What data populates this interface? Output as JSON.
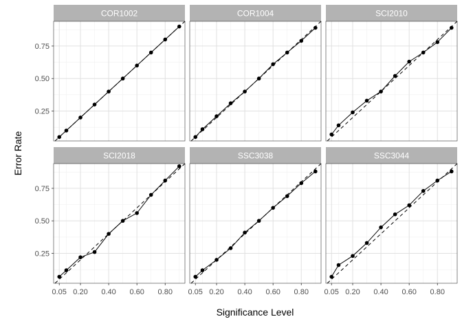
{
  "chart_data": {
    "type": "line",
    "layout": "facet-grid",
    "xlabel": "Significance Level",
    "ylabel": "Error Rate",
    "x_ticks": [
      0.05,
      0.2,
      0.4,
      0.6,
      0.8
    ],
    "x_tick_labels": [
      "0.05",
      "0.20",
      "0.40",
      "0.60",
      "0.80"
    ],
    "y_ticks": [
      0.25,
      0.5,
      0.75
    ],
    "y_tick_labels": [
      "0.25",
      "0.50",
      "0.75"
    ],
    "xlim": [
      0.01,
      0.94
    ],
    "ylim": [
      0.02,
      0.94
    ],
    "reference_line": "y = x (dashed)",
    "grid": true,
    "x": [
      0.05,
      0.1,
      0.2,
      0.3,
      0.4,
      0.5,
      0.6,
      0.7,
      0.8,
      0.9
    ],
    "panels": [
      {
        "name": "COR1002",
        "values": [
          0.05,
          0.1,
          0.2,
          0.3,
          0.4,
          0.5,
          0.6,
          0.7,
          0.8,
          0.9
        ]
      },
      {
        "name": "COR1004",
        "values": [
          0.05,
          0.11,
          0.21,
          0.31,
          0.4,
          0.5,
          0.61,
          0.7,
          0.79,
          0.89
        ]
      },
      {
        "name": "SCI2010",
        "values": [
          0.07,
          0.14,
          0.24,
          0.33,
          0.4,
          0.52,
          0.63,
          0.7,
          0.78,
          0.89
        ]
      },
      {
        "name": "SCI2018",
        "values": [
          0.07,
          0.12,
          0.22,
          0.26,
          0.4,
          0.5,
          0.56,
          0.7,
          0.81,
          0.92
        ]
      },
      {
        "name": "SSC3038",
        "values": [
          0.07,
          0.12,
          0.2,
          0.29,
          0.41,
          0.5,
          0.6,
          0.69,
          0.79,
          0.88
        ]
      },
      {
        "name": "SSC3044",
        "values": [
          0.07,
          0.16,
          0.23,
          0.33,
          0.45,
          0.55,
          0.62,
          0.73,
          0.81,
          0.88
        ]
      }
    ]
  }
}
